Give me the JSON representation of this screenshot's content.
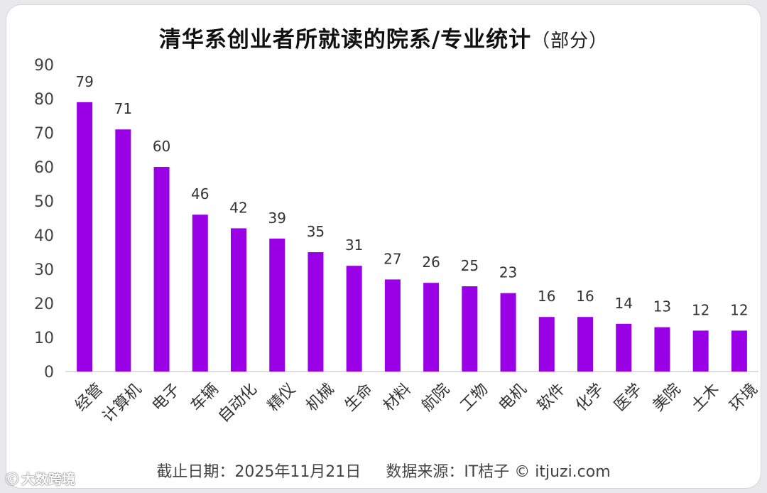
{
  "title": {
    "main": "清华系创业者所就读的院系/专业统计",
    "sub": "（部分）"
  },
  "footer": {
    "cutoff": "截止日期：2025年11月21日",
    "source": "数据来源：IT桔子 © itjuzi.com"
  },
  "watermark": {
    "logo_icon": "watermark-logo-icon",
    "text": "大数跨境"
  },
  "chart_data": {
    "type": "bar",
    "title": "清华系创业者所就读的院系/专业统计（部分）",
    "xlabel": "",
    "ylabel": "",
    "ylim": [
      0,
      90
    ],
    "yticks": [
      0,
      10,
      20,
      30,
      40,
      50,
      60,
      70,
      80,
      90
    ],
    "grid": false,
    "legend": "none",
    "bar_color": "#9900e6",
    "categories": [
      "经管",
      "计算机",
      "电子",
      "车辆",
      "自动化",
      "精仪",
      "机械",
      "生命",
      "材料",
      "航院",
      "工物",
      "电机",
      "软件",
      "化学",
      "医学",
      "美院",
      "土木",
      "环境"
    ],
    "values": [
      79,
      71,
      60,
      46,
      42,
      39,
      35,
      31,
      27,
      26,
      25,
      23,
      16,
      16,
      14,
      13,
      12,
      12
    ]
  }
}
